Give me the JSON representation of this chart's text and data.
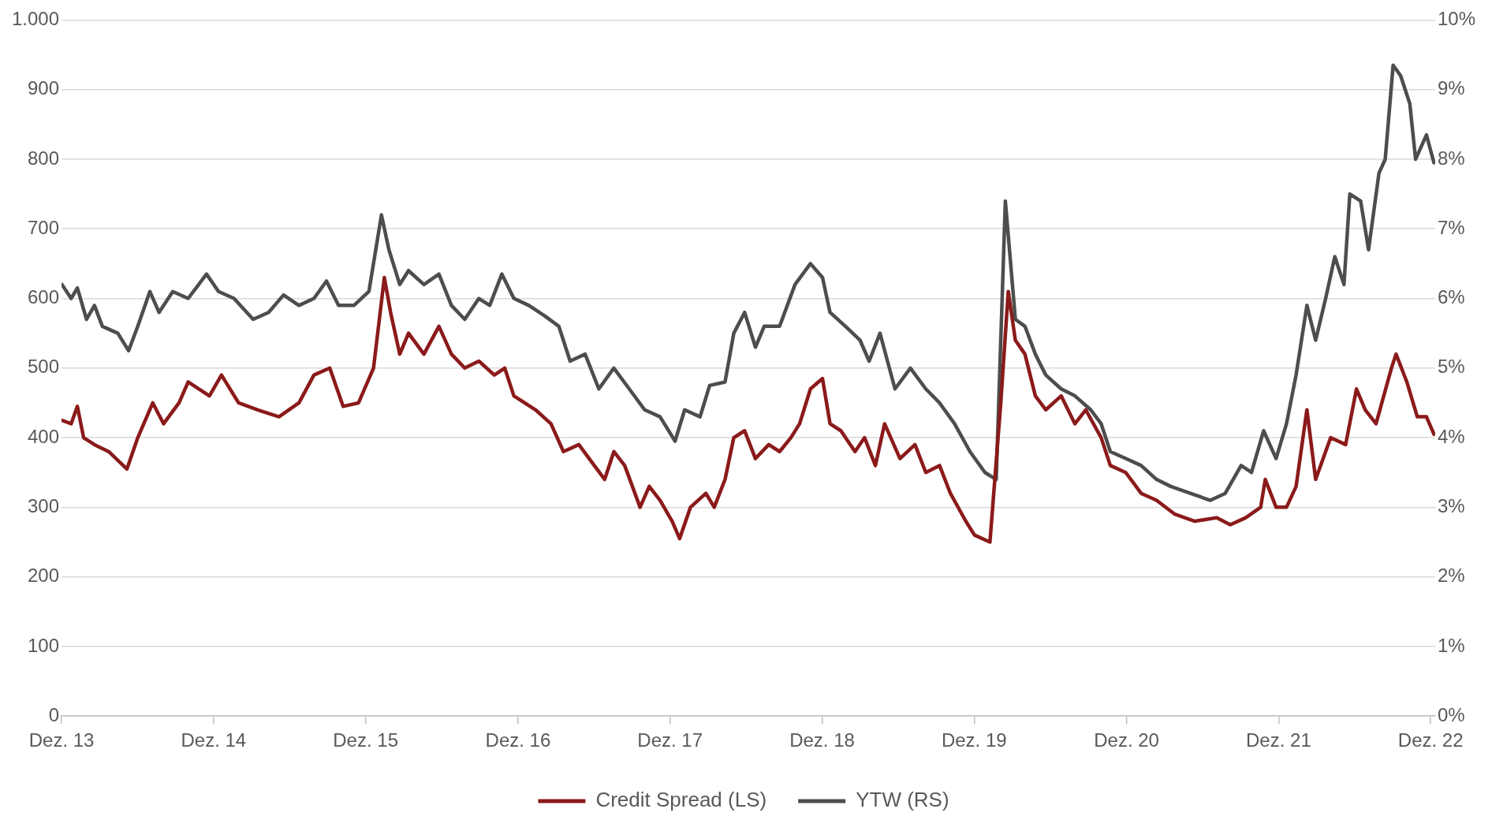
{
  "chart_data": {
    "type": "line",
    "xlim": [
      "2013-12-01",
      "2022-12-12"
    ],
    "xticks": [
      {
        "value": "2013-12-01",
        "label": "Dez. 13"
      },
      {
        "value": "2014-12-01",
        "label": "Dez. 14"
      },
      {
        "value": "2015-12-01",
        "label": "Dez. 15"
      },
      {
        "value": "2016-12-01",
        "label": "Dez. 16"
      },
      {
        "value": "2017-12-01",
        "label": "Dez. 17"
      },
      {
        "value": "2018-12-01",
        "label": "Dez. 18"
      },
      {
        "value": "2019-12-01",
        "label": "Dez. 19"
      },
      {
        "value": "2020-12-01",
        "label": "Dez. 20"
      },
      {
        "value": "2021-12-01",
        "label": "Dez. 21"
      },
      {
        "value": "2022-12-01",
        "label": "Dez. 22"
      }
    ],
    "ylim": [
      0,
      1000
    ],
    "yticks": [
      0,
      100,
      200,
      300,
      400,
      500,
      600,
      700,
      800,
      900,
      {
        "value": 1000,
        "label": "1.000"
      }
    ],
    "y2lim": [
      0,
      10
    ],
    "y2ticks": [
      {
        "value": 0,
        "label": "0%"
      },
      {
        "value": 1,
        "label": "1%"
      },
      {
        "value": 2,
        "label": "2%"
      },
      {
        "value": 3,
        "label": "3%"
      },
      {
        "value": 4,
        "label": "4%"
      },
      {
        "value": 5,
        "label": "5%"
      },
      {
        "value": 6,
        "label": "6%"
      },
      {
        "value": 7,
        "label": "7%"
      },
      {
        "value": 8,
        "label": "8%"
      },
      {
        "value": 9,
        "label": "9%"
      },
      {
        "value": 10,
        "label": "10%"
      }
    ],
    "grid": "y",
    "legend": "bottom",
    "marker": "none",
    "series": [
      {
        "name": "Credit Spread (LS)",
        "color": "#8b1a1a",
        "x": [
          "2013-12-02",
          "2013-12-24",
          "2014-01-08",
          "2014-01-23",
          "2014-02-18",
          "2014-03-24",
          "2014-05-07",
          "2014-06-02",
          "2014-07-08",
          "2014-08-03",
          "2014-09-09",
          "2014-10-01",
          "2014-11-21",
          "2014-12-20",
          "2015-01-30",
          "2015-03-17",
          "2015-05-07",
          "2015-06-24",
          "2015-07-30",
          "2015-09-06",
          "2015-10-08",
          "2015-11-14",
          "2015-12-20",
          "2016-01-15",
          "2016-01-30",
          "2016-02-21",
          "2016-03-13",
          "2016-04-19",
          "2016-05-25",
          "2016-06-24",
          "2016-07-26",
          "2016-08-29",
          "2016-10-05",
          "2016-10-30",
          "2016-11-21",
          "2017-01-12",
          "2017-02-18",
          "2017-03-20",
          "2017-04-26",
          "2017-06-02",
          "2017-06-27",
          "2017-07-19",
          "2017-08-14",
          "2017-09-20",
          "2017-10-12",
          "2017-11-07",
          "2017-12-06",
          "2017-12-24",
          "2018-01-19",
          "2018-02-25",
          "2018-03-17",
          "2018-04-12",
          "2018-05-03",
          "2018-05-29",
          "2018-06-24",
          "2018-07-26",
          "2018-08-21",
          "2018-09-17",
          "2018-10-08",
          "2018-11-03",
          "2018-12-02",
          "2018-12-20",
          "2019-01-15",
          "2019-02-18",
          "2019-03-13",
          "2019-04-08",
          "2019-04-30",
          "2019-06-06",
          "2019-07-12",
          "2019-08-07",
          "2019-09-09",
          "2019-10-05",
          "2019-11-11",
          "2019-12-02",
          "2020-01-08",
          "2020-02-03",
          "2020-02-21",
          "2020-03-09",
          "2020-04-01",
          "2020-04-26",
          "2020-05-21",
          "2020-06-27",
          "2020-07-30",
          "2020-08-25",
          "2020-10-01",
          "2020-10-23",
          "2020-11-29",
          "2021-01-05",
          "2021-02-11",
          "2021-03-27",
          "2021-05-14",
          "2021-07-05",
          "2021-08-07",
          "2021-09-13",
          "2021-10-19",
          "2021-10-30",
          "2021-11-25",
          "2021-12-20",
          "2022-01-12",
          "2022-02-07",
          "2022-02-28",
          "2022-04-05",
          "2022-05-11",
          "2022-06-06",
          "2022-06-27",
          "2022-07-23",
          "2022-08-29",
          "2022-09-09",
          "2022-10-05",
          "2022-10-30",
          "2022-11-21",
          "2022-12-09"
        ],
        "values": [
          425,
          420,
          445,
          400,
          390,
          380,
          355,
          400,
          450,
          420,
          450,
          480,
          460,
          490,
          450,
          440,
          430,
          450,
          490,
          500,
          445,
          450,
          500,
          630,
          580,
          520,
          550,
          520,
          560,
          520,
          500,
          510,
          490,
          500,
          460,
          440,
          420,
          380,
          390,
          360,
          340,
          380,
          360,
          300,
          330,
          310,
          280,
          255,
          300,
          320,
          300,
          340,
          400,
          410,
          370,
          390,
          380,
          400,
          420,
          470,
          485,
          420,
          410,
          380,
          400,
          360,
          420,
          370,
          390,
          350,
          360,
          320,
          280,
          260,
          250,
          450,
          610,
          540,
          520,
          460,
          440,
          460,
          420,
          440,
          400,
          360,
          350,
          320,
          310,
          290,
          280,
          285,
          275,
          285,
          300,
          340,
          300,
          300,
          330,
          440,
          340,
          400,
          390,
          470,
          440,
          420,
          500,
          520,
          480,
          430,
          430,
          405
        ]
      },
      {
        "name": "YTW (RS)",
        "color": "#4d4d4d",
        "axis": "y2",
        "x": [
          "2013-12-02",
          "2013-12-24",
          "2014-01-08",
          "2014-01-30",
          "2014-02-18",
          "2014-03-09",
          "2014-04-15",
          "2014-05-11",
          "2014-06-02",
          "2014-07-01",
          "2014-07-23",
          "2014-08-25",
          "2014-10-01",
          "2014-11-14",
          "2014-12-13",
          "2015-01-19",
          "2015-03-06",
          "2015-04-12",
          "2015-05-18",
          "2015-06-24",
          "2015-07-30",
          "2015-08-29",
          "2015-09-27",
          "2015-11-03",
          "2015-12-09",
          "2016-01-08",
          "2016-01-26",
          "2016-02-21",
          "2016-03-13",
          "2016-04-19",
          "2016-05-25",
          "2016-06-24",
          "2016-07-26",
          "2016-08-29",
          "2016-09-24",
          "2016-10-23",
          "2016-11-21",
          "2016-12-27",
          "2017-02-03",
          "2017-03-09",
          "2017-04-05",
          "2017-05-11",
          "2017-06-13",
          "2017-07-19",
          "2017-08-25",
          "2017-10-01",
          "2017-11-07",
          "2017-12-13",
          "2018-01-05",
          "2018-02-11",
          "2018-03-06",
          "2018-04-12",
          "2018-05-03",
          "2018-05-29",
          "2018-06-24",
          "2018-07-15",
          "2018-08-21",
          "2018-09-27",
          "2018-11-03",
          "2018-12-02",
          "2018-12-20",
          "2019-01-26",
          "2019-03-02",
          "2019-03-24",
          "2019-04-19",
          "2019-05-25",
          "2019-07-01",
          "2019-08-07",
          "2019-09-09",
          "2019-10-15",
          "2019-11-21",
          "2019-12-27",
          "2020-01-23",
          "2020-02-14",
          "2020-03-09",
          "2020-04-01",
          "2020-04-26",
          "2020-05-21",
          "2020-06-27",
          "2020-07-30",
          "2020-09-06",
          "2020-10-01",
          "2020-10-23",
          "2020-11-29",
          "2021-01-05",
          "2021-02-11",
          "2021-03-17",
          "2021-05-03",
          "2021-06-20",
          "2021-07-26",
          "2021-09-02",
          "2021-09-27",
          "2021-10-26",
          "2021-11-25",
          "2021-12-20",
          "2022-01-12",
          "2022-02-07",
          "2022-02-28",
          "2022-03-24",
          "2022-04-15",
          "2022-05-07",
          "2022-05-21",
          "2022-06-16",
          "2022-07-05",
          "2022-07-30",
          "2022-08-14",
          "2022-09-02",
          "2022-09-20",
          "2022-10-12",
          "2022-10-26",
          "2022-11-21",
          "2022-12-09"
        ],
        "values": [
          6.2,
          6.0,
          6.15,
          5.7,
          5.9,
          5.6,
          5.5,
          5.25,
          5.6,
          6.1,
          5.8,
          6.1,
          6.0,
          6.35,
          6.1,
          6.0,
          5.7,
          5.8,
          6.05,
          5.9,
          6.0,
          6.25,
          5.9,
          5.9,
          6.1,
          7.2,
          6.7,
          6.2,
          6.4,
          6.2,
          6.35,
          5.9,
          5.7,
          6.0,
          5.9,
          6.35,
          6.0,
          5.9,
          5.75,
          5.6,
          5.1,
          5.2,
          4.7,
          5.0,
          4.7,
          4.4,
          4.3,
          3.95,
          4.4,
          4.3,
          4.75,
          4.8,
          5.5,
          5.8,
          5.3,
          5.6,
          5.6,
          6.2,
          6.5,
          6.3,
          5.8,
          5.6,
          5.4,
          5.1,
          5.5,
          4.7,
          5.0,
          4.7,
          4.5,
          4.2,
          3.8,
          3.5,
          3.4,
          7.4,
          5.7,
          5.6,
          5.2,
          4.9,
          4.7,
          4.6,
          4.4,
          4.2,
          3.8,
          3.7,
          3.6,
          3.4,
          3.3,
          3.2,
          3.1,
          3.2,
          3.6,
          3.5,
          4.1,
          3.7,
          4.2,
          4.9,
          5.9,
          5.4,
          6.0,
          6.6,
          6.2,
          7.5,
          7.4,
          6.7,
          7.8,
          8.0,
          9.35,
          9.2,
          8.8,
          8.0,
          8.35,
          7.95
        ]
      }
    ]
  }
}
